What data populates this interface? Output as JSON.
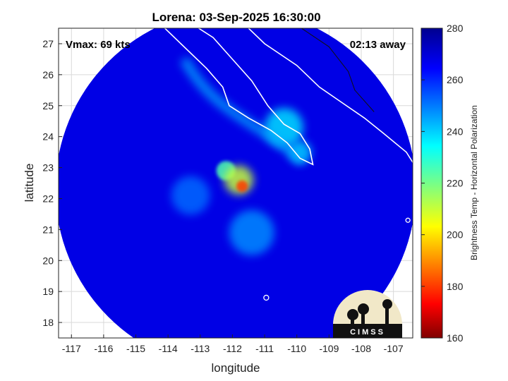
{
  "chart_data": {
    "type": "heatmap",
    "title": "Lorena: 03-Sep-2025 16:30:00",
    "xlabel": "longitude",
    "ylabel": "latitude",
    "xlim": [
      -117.4,
      -106.4
    ],
    "ylim": [
      17.5,
      27.5
    ],
    "xticks": [
      -117,
      -116,
      -115,
      -114,
      -113,
      -112,
      -111,
      -110,
      -109,
      -108,
      -107
    ],
    "yticks": [
      18,
      19,
      20,
      21,
      22,
      23,
      24,
      25,
      26,
      27
    ],
    "grid": true,
    "annotations": {
      "vmax": "Vmax: 69 kts",
      "time_away": "02:13 away"
    },
    "colorbar": {
      "label": "Brightness Temp - Horizontal Polarization",
      "min": 160,
      "max": 280,
      "ticks": [
        160,
        180,
        200,
        220,
        240,
        260,
        280
      ],
      "colormap": "jet"
    },
    "swath": {
      "center": [
        -111.9,
        22.3
      ],
      "radius_deg": 5.6,
      "background_temp": 268
    },
    "features": [
      {
        "name": "storm-core",
        "lon": -111.7,
        "lat": 22.4,
        "temp": 180,
        "spread": 0.18
      },
      {
        "name": "inner-ring",
        "lon": -111.8,
        "lat": 22.6,
        "temp": 210,
        "spread": 0.45
      },
      {
        "name": "eye-band-north",
        "lon": -112.2,
        "lat": 22.9,
        "temp": 225,
        "spread": 0.3
      },
      {
        "name": "baja-land-band",
        "lon": -110.4,
        "lat": 24.3,
        "temp": 238,
        "spread": 0.6
      },
      {
        "name": "baja-tip",
        "lon": -109.9,
        "lat": 23.5,
        "temp": 240,
        "spread": 0.35
      },
      {
        "name": "outer-band-south",
        "lon": -111.4,
        "lat": 20.9,
        "temp": 248,
        "spread": 0.7
      },
      {
        "name": "outer-band-west",
        "lon": -113.3,
        "lat": 22.1,
        "temp": 252,
        "spread": 0.6
      }
    ],
    "logo": "CIMSS"
  }
}
